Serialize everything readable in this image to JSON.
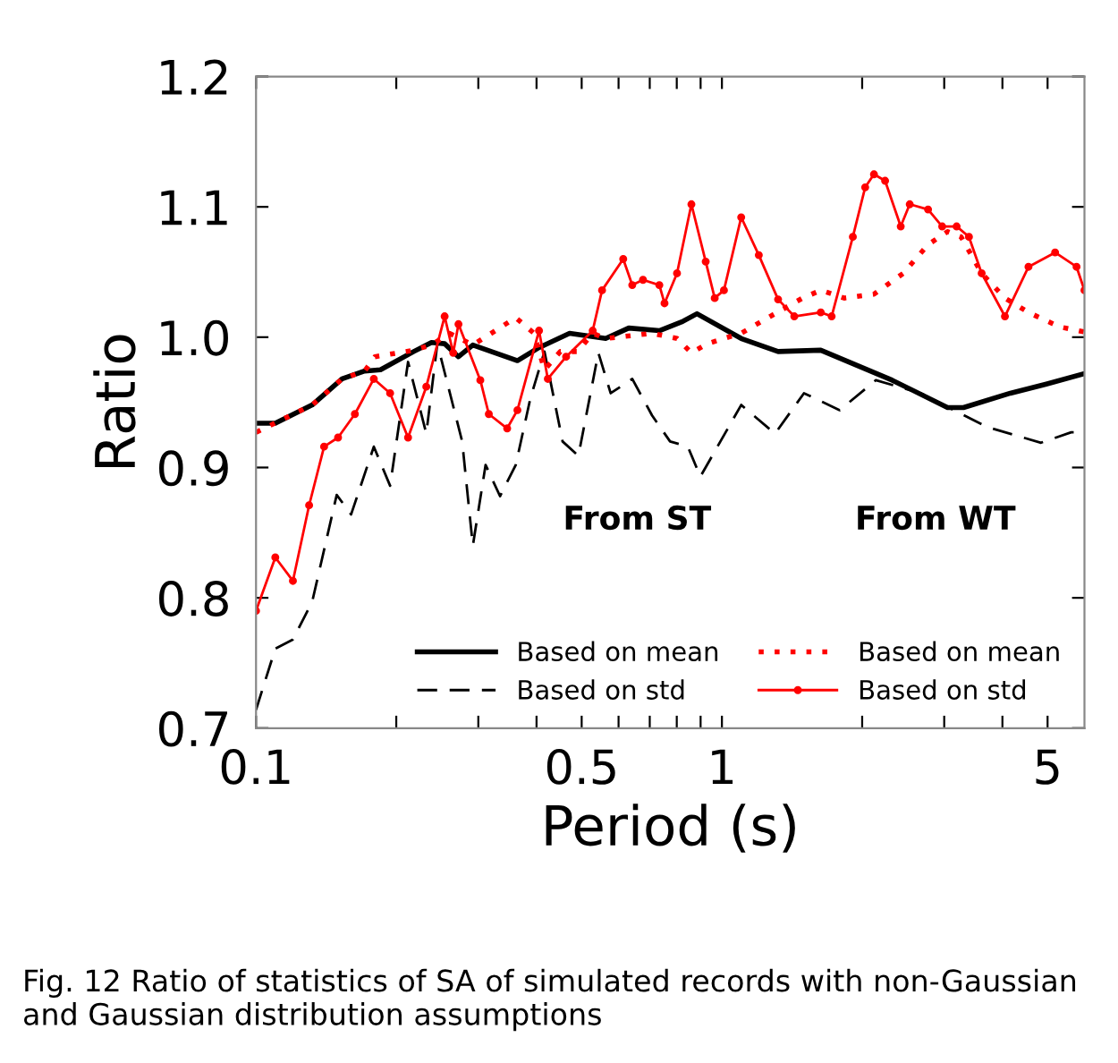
{
  "chart_data": {
    "type": "line",
    "xlabel": "Period (s)",
    "ylabel": "Ratio",
    "log": "x",
    "xlim": [
      0.1,
      6
    ],
    "ylim": [
      0.7,
      1.2
    ],
    "xticks": [
      0.1,
      {
        "value": 0.2,
        "label": null
      },
      {
        "value": 0.3,
        "label": null
      },
      {
        "value": 0.4,
        "label": null
      },
      0.5,
      {
        "value": 0.6,
        "label": null
      },
      {
        "value": 0.7,
        "label": null
      },
      {
        "value": 0.8,
        "label": null
      },
      {
        "value": 0.9,
        "label": null
      },
      1,
      {
        "value": 2,
        "label": null
      },
      {
        "value": 3,
        "label": null
      },
      {
        "value": 4,
        "label": null
      },
      5
    ],
    "yticks": [
      0.7,
      0.8,
      0.9,
      {
        "value": 1.0,
        "label": "1.0"
      },
      1.1,
      1.2
    ],
    "grid": false,
    "legend": "bottom right",
    "series": [
      {
        "name": "Based on mean",
        "color": "#000000",
        "line_style": "solid",
        "marker": "none",
        "x": [
          0.1,
          0.11,
          0.132,
          0.153,
          0.171,
          0.185,
          0.218,
          0.238,
          0.254,
          0.272,
          0.292,
          0.364,
          0.405,
          0.471,
          0.563,
          0.631,
          0.734,
          0.823,
          0.884,
          1.1,
          1.32,
          1.63,
          2.32,
          3.05,
          3.3,
          4.16,
          4.97,
          6.0
        ],
        "values": [
          0.934,
          0.934,
          0.948,
          0.968,
          0.974,
          0.975,
          0.989,
          0.996,
          0.995,
          0.985,
          0.994,
          0.982,
          0.992,
          1.003,
          0.999,
          1.007,
          1.005,
          1.012,
          1.018,
          0.999,
          0.989,
          0.99,
          0.967,
          0.946,
          0.946,
          0.957,
          0.964,
          0.972
        ]
      },
      {
        "name": "Based on std",
        "color": "#000000",
        "line_style": "dashed",
        "marker": "none",
        "x": [
          0.1,
          0.11,
          0.12,
          0.132,
          0.149,
          0.16,
          0.179,
          0.194,
          0.212,
          0.232,
          0.245,
          0.277,
          0.292,
          0.311,
          0.334,
          0.361,
          0.388,
          0.416,
          0.455,
          0.492,
          0.543,
          0.577,
          0.642,
          0.708,
          0.774,
          0.845,
          0.899,
          1.1,
          1.3,
          1.5,
          1.79,
          2.14,
          2.67,
          3.71,
          4.84,
          5.62,
          6.0
        ],
        "values": [
          0.714,
          0.761,
          0.768,
          0.797,
          0.879,
          0.864,
          0.916,
          0.886,
          0.981,
          0.926,
          0.995,
          0.92,
          0.84,
          0.902,
          0.878,
          0.902,
          0.953,
          0.989,
          0.92,
          0.909,
          0.988,
          0.957,
          0.968,
          0.94,
          0.92,
          0.916,
          0.893,
          0.948,
          0.926,
          0.957,
          0.944,
          0.967,
          0.957,
          0.931,
          0.919,
          0.927,
          0.927
        ]
      },
      {
        "name": "Based on mean",
        "color": "#ff0000",
        "line_style": "dotted",
        "marker": "none",
        "x": [
          0.1,
          0.132,
          0.153,
          0.171,
          0.18,
          0.218,
          0.238,
          0.26,
          0.292,
          0.361,
          0.395,
          0.416,
          0.45,
          0.49,
          0.528,
          0.563,
          0.708,
          0.801,
          0.86,
          0.93,
          1.01,
          1.1,
          1.27,
          1.49,
          1.63,
          1.83,
          2.12,
          2.45,
          2.77,
          3.05,
          3.26,
          3.61,
          4.05,
          4.55,
          5.3,
          6.0
        ],
        "values": [
          0.927,
          0.948,
          0.968,
          0.974,
          0.985,
          0.99,
          0.994,
          1.003,
          0.994,
          1.015,
          1.003,
          0.975,
          0.989,
          0.989,
          1.003,
          0.999,
          1.003,
          0.999,
          0.988,
          0.995,
          0.999,
          1.003,
          1.016,
          1.03,
          1.036,
          1.03,
          1.033,
          1.049,
          1.071,
          1.081,
          1.077,
          1.049,
          1.03,
          1.019,
          1.008,
          1.004
        ]
      },
      {
        "name": "Based on std",
        "color": "#ff0000",
        "line_style": "solid",
        "marker": "circle",
        "x": [
          0.1,
          0.11,
          0.12,
          0.13,
          0.14,
          0.15,
          0.163,
          0.179,
          0.194,
          0.212,
          0.232,
          0.254,
          0.265,
          0.272,
          0.303,
          0.316,
          0.346,
          0.364,
          0.405,
          0.423,
          0.463,
          0.528,
          0.553,
          0.614,
          0.642,
          0.677,
          0.734,
          0.753,
          0.801,
          0.86,
          0.923,
          0.965,
          1.01,
          1.1,
          1.2,
          1.32,
          1.43,
          1.63,
          1.72,
          1.91,
          2.03,
          2.12,
          2.24,
          2.42,
          2.53,
          2.77,
          2.97,
          3.19,
          3.39,
          3.61,
          4.05,
          4.55,
          5.19,
          5.77,
          6.0
        ],
        "values": [
          0.79,
          0.831,
          0.813,
          0.871,
          0.916,
          0.923,
          0.941,
          0.968,
          0.957,
          0.923,
          0.962,
          1.016,
          0.988,
          1.01,
          0.967,
          0.941,
          0.93,
          0.944,
          1.005,
          0.968,
          0.985,
          1.005,
          1.036,
          1.06,
          1.04,
          1.044,
          1.04,
          1.026,
          1.049,
          1.102,
          1.058,
          1.03,
          1.036,
          1.092,
          1.063,
          1.029,
          1.016,
          1.019,
          1.016,
          1.077,
          1.115,
          1.125,
          1.12,
          1.085,
          1.102,
          1.098,
          1.085,
          1.085,
          1.077,
          1.049,
          1.016,
          1.054,
          1.065,
          1.054,
          1.036
        ]
      }
    ],
    "annotations": [
      "From ST",
      "From WT",
      "Fig. 12 Ratio of statistics of SA of simulated records with non-Gaussian and Gaussian distribution assumptions"
    ]
  }
}
